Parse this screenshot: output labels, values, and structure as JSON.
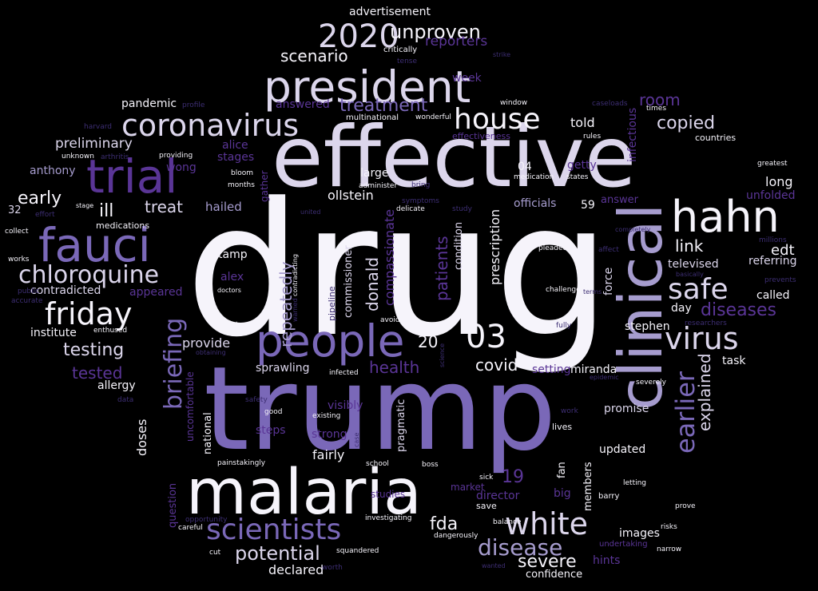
{
  "palette": {
    "white": "#f6f4fb",
    "lavender": "#dcd6ec",
    "lilac": "#a69cce",
    "purple": "#7a68b8",
    "violet": "#5a3596",
    "dim": "#3d2e73"
  },
  "words": [
    {
      "text": "drug",
      "color": "white"
    },
    {
      "text": "trump",
      "color": "purple"
    },
    {
      "text": "effective",
      "color": "lavender"
    },
    {
      "text": "clinical",
      "color": "lilac"
    },
    {
      "text": "malaria",
      "color": "white"
    },
    {
      "text": "president",
      "color": "lavender"
    },
    {
      "text": "people",
      "color": "purple"
    },
    {
      "text": "fauci",
      "color": "purple"
    },
    {
      "text": "trial",
      "color": "violet"
    },
    {
      "text": "hahn",
      "color": "white"
    },
    {
      "text": "coronavirus",
      "color": "lavender"
    },
    {
      "text": "scientists",
      "color": "purple"
    },
    {
      "text": "white",
      "color": "lavender"
    },
    {
      "text": "friday",
      "color": "white"
    },
    {
      "text": "chloroquine",
      "color": "lavender"
    },
    {
      "text": "virus",
      "color": "lavender"
    },
    {
      "text": "house",
      "color": "white"
    },
    {
      "text": "safe",
      "color": "lavender"
    },
    {
      "text": "earlier",
      "color": "purple"
    },
    {
      "text": "briefing",
      "color": "purple"
    },
    {
      "text": "disease",
      "color": "lilac"
    },
    {
      "text": "2020",
      "color": "lavender"
    },
    {
      "text": "03",
      "color": "white"
    },
    {
      "text": "treatment",
      "color": "purple"
    },
    {
      "text": "unproven",
      "color": "white"
    },
    {
      "text": "potential",
      "color": "lavender"
    },
    {
      "text": "explained",
      "color": "lavender"
    },
    {
      "text": "diseases",
      "color": "violet"
    },
    {
      "text": "copied",
      "color": "lavender"
    },
    {
      "text": "testing",
      "color": "lavender"
    },
    {
      "text": "severe",
      "color": "white"
    },
    {
      "text": "repeatedly",
      "color": "lilac"
    },
    {
      "text": "scenario",
      "color": "white"
    },
    {
      "text": "health",
      "color": "violet"
    },
    {
      "text": "patients",
      "color": "violet"
    },
    {
      "text": "donald",
      "color": "lavender"
    },
    {
      "text": "compassionate",
      "color": "violet"
    },
    {
      "text": "reporters",
      "color": "violet"
    },
    {
      "text": "early",
      "color": "white"
    },
    {
      "text": "ill",
      "color": "white"
    },
    {
      "text": "treat",
      "color": "lavender"
    },
    {
      "text": "fda",
      "color": "white"
    },
    {
      "text": "room",
      "color": "violet"
    },
    {
      "text": "link",
      "color": "white"
    },
    {
      "text": "edt",
      "color": "white"
    },
    {
      "text": "tested",
      "color": "violet"
    },
    {
      "text": "covid",
      "color": "white"
    },
    {
      "text": "declared",
      "color": "white"
    },
    {
      "text": "prescription",
      "color": "white"
    },
    {
      "text": "infectious",
      "color": "violet"
    },
    {
      "text": "preliminary",
      "color": "lavender"
    },
    {
      "text": "advertisement",
      "color": "white"
    },
    {
      "text": "pandemic",
      "color": "white"
    },
    {
      "text": "answered",
      "color": "violet"
    },
    {
      "text": "told",
      "color": "white"
    },
    {
      "text": "wong",
      "color": "violet"
    },
    {
      "text": "alice",
      "color": "violet"
    },
    {
      "text": "stages",
      "color": "violet"
    },
    {
      "text": "anthony",
      "color": "lilac"
    },
    {
      "text": "large",
      "color": "white"
    },
    {
      "text": "04",
      "color": "white"
    },
    {
      "text": "getty",
      "color": "violet"
    },
    {
      "text": "ollstein",
      "color": "white"
    },
    {
      "text": "officials",
      "color": "lilac"
    },
    {
      "text": "59",
      "color": "white"
    },
    {
      "text": "answer",
      "color": "violet"
    },
    {
      "text": "unfolded",
      "color": "violet"
    },
    {
      "text": "long",
      "color": "white"
    },
    {
      "text": "hailed",
      "color": "lilac"
    },
    {
      "text": "32",
      "color": "lavender"
    },
    {
      "text": "contradicted",
      "color": "lavender"
    },
    {
      "text": "appeared",
      "color": "violet"
    },
    {
      "text": "alex",
      "color": "violet"
    },
    {
      "text": "tamp",
      "color": "white"
    },
    {
      "text": "condition",
      "color": "lavender"
    },
    {
      "text": "commissioner",
      "color": "lavender"
    },
    {
      "text": "televised",
      "color": "lavender"
    },
    {
      "text": "referring",
      "color": "lavender"
    },
    {
      "text": "called",
      "color": "white"
    },
    {
      "text": "day",
      "color": "white"
    },
    {
      "text": "force",
      "color": "lavender"
    },
    {
      "text": "stephen",
      "color": "white"
    },
    {
      "text": "institute",
      "color": "white"
    },
    {
      "text": "provide",
      "color": "lavender"
    },
    {
      "text": "20",
      "color": "white"
    },
    {
      "text": "setting",
      "color": "violet"
    },
    {
      "text": "miranda",
      "color": "white"
    },
    {
      "text": "task",
      "color": "white"
    },
    {
      "text": "allergy",
      "color": "white"
    },
    {
      "text": "sprawling",
      "color": "lavender"
    },
    {
      "text": "uncomfortable",
      "color": "violet"
    },
    {
      "text": "visibly",
      "color": "violet"
    },
    {
      "text": "promise",
      "color": "lavender"
    },
    {
      "text": "pragmatic",
      "color": "lavender"
    },
    {
      "text": "doses",
      "color": "white"
    },
    {
      "text": "national",
      "color": "white"
    },
    {
      "text": "strong",
      "color": "violet"
    },
    {
      "text": "fairly",
      "color": "white"
    },
    {
      "text": "steps",
      "color": "violet"
    },
    {
      "text": "19",
      "color": "violet"
    },
    {
      "text": "director",
      "color": "violet"
    },
    {
      "text": "fan",
      "color": "white"
    },
    {
      "text": "updated",
      "color": "white"
    },
    {
      "text": "question",
      "color": "violet"
    },
    {
      "text": "members",
      "color": "white"
    },
    {
      "text": "big",
      "color": "violet"
    },
    {
      "text": "images",
      "color": "white"
    },
    {
      "text": "hints",
      "color": "violet"
    },
    {
      "text": "confidence",
      "color": "white"
    },
    {
      "text": "effectiveness",
      "color": "violet"
    },
    {
      "text": "medications",
      "color": "white"
    },
    {
      "text": "week",
      "color": "violet"
    },
    {
      "text": "gather",
      "color": "violet"
    },
    {
      "text": "market",
      "color": "violet"
    },
    {
      "text": "studies",
      "color": "violet"
    },
    {
      "text": "save",
      "color": "white"
    },
    {
      "text": "lives",
      "color": "white"
    },
    {
      "text": "barry",
      "color": "white"
    },
    {
      "text": "critically",
      "color": "white"
    },
    {
      "text": "tense",
      "color": "dim"
    },
    {
      "text": "strike",
      "color": "dim"
    },
    {
      "text": "multinational",
      "color": "white"
    },
    {
      "text": "wonderful",
      "color": "white"
    },
    {
      "text": "profile",
      "color": "dim"
    },
    {
      "text": "window",
      "color": "white"
    },
    {
      "text": "caseloads",
      "color": "dim"
    },
    {
      "text": "times",
      "color": "white"
    },
    {
      "text": "rules",
      "color": "white"
    },
    {
      "text": "countries",
      "color": "white"
    },
    {
      "text": "harvard",
      "color": "dim"
    },
    {
      "text": "unknown",
      "color": "white"
    },
    {
      "text": "arthritis",
      "color": "dim"
    },
    {
      "text": "providing",
      "color": "white"
    },
    {
      "text": "bloom",
      "color": "white"
    },
    {
      "text": "months",
      "color": "white"
    },
    {
      "text": "administer",
      "color": "white"
    },
    {
      "text": "bring",
      "color": "dim"
    },
    {
      "text": "symptoms",
      "color": "dim"
    },
    {
      "text": "medication",
      "color": "white"
    },
    {
      "text": "states",
      "color": "white"
    },
    {
      "text": "greatest",
      "color": "white"
    },
    {
      "text": "stage",
      "color": "white"
    },
    {
      "text": "effort",
      "color": "dim"
    },
    {
      "text": "united",
      "color": "dim"
    },
    {
      "text": "delicate",
      "color": "white"
    },
    {
      "text": "study",
      "color": "dim"
    },
    {
      "text": "collect",
      "color": "white"
    },
    {
      "text": "works",
      "color": "white"
    },
    {
      "text": "completely",
      "color": "dim"
    },
    {
      "text": "millions",
      "color": "dim"
    },
    {
      "text": "pleaded",
      "color": "white"
    },
    {
      "text": "affect",
      "color": "dim"
    },
    {
      "text": "contradicting",
      "color": "white"
    },
    {
      "text": "public",
      "color": "dim"
    },
    {
      "text": "accurate",
      "color": "dim"
    },
    {
      "text": "basically",
      "color": "dim"
    },
    {
      "text": "prevents",
      "color": "dim"
    },
    {
      "text": "doctors",
      "color": "white"
    },
    {
      "text": "pipeline",
      "color": "dim"
    },
    {
      "text": "challenge",
      "color": "white"
    },
    {
      "text": "terms",
      "color": "dim"
    },
    {
      "text": "warned",
      "color": "dim"
    },
    {
      "text": "earliest",
      "color": "white"
    },
    {
      "text": "avoiding",
      "color": "white"
    },
    {
      "text": "fully",
      "color": "dim"
    },
    {
      "text": "researchers",
      "color": "dim"
    },
    {
      "text": "enthused",
      "color": "white"
    },
    {
      "text": "obtaining",
      "color": "dim"
    },
    {
      "text": "science",
      "color": "dim"
    },
    {
      "text": "infected",
      "color": "white"
    },
    {
      "text": "epidemic",
      "color": "dim"
    },
    {
      "text": "severely",
      "color": "white"
    },
    {
      "text": "data",
      "color": "dim"
    },
    {
      "text": "safety",
      "color": "dim"
    },
    {
      "text": "good",
      "color": "white"
    },
    {
      "text": "existing",
      "color": "white"
    },
    {
      "text": "work",
      "color": "dim"
    },
    {
      "text": "case",
      "color": "dim"
    },
    {
      "text": "painstakingly",
      "color": "white"
    },
    {
      "text": "school",
      "color": "white"
    },
    {
      "text": "boss",
      "color": "white"
    },
    {
      "text": "sick",
      "color": "white"
    },
    {
      "text": "letting",
      "color": "white"
    },
    {
      "text": "prove",
      "color": "white"
    },
    {
      "text": "opportunity",
      "color": "dim"
    },
    {
      "text": "investigating",
      "color": "white"
    },
    {
      "text": "balance",
      "color": "white"
    },
    {
      "text": "careful",
      "color": "white"
    },
    {
      "text": "dangerously",
      "color": "white"
    },
    {
      "text": "risks",
      "color": "white"
    },
    {
      "text": "undertaking",
      "color": "violet"
    },
    {
      "text": "cut",
      "color": "white"
    },
    {
      "text": "squandered",
      "color": "white"
    },
    {
      "text": "narrow",
      "color": "white"
    },
    {
      "text": "worth",
      "color": "dim"
    },
    {
      "text": "wanted",
      "color": "dim"
    }
  ]
}
